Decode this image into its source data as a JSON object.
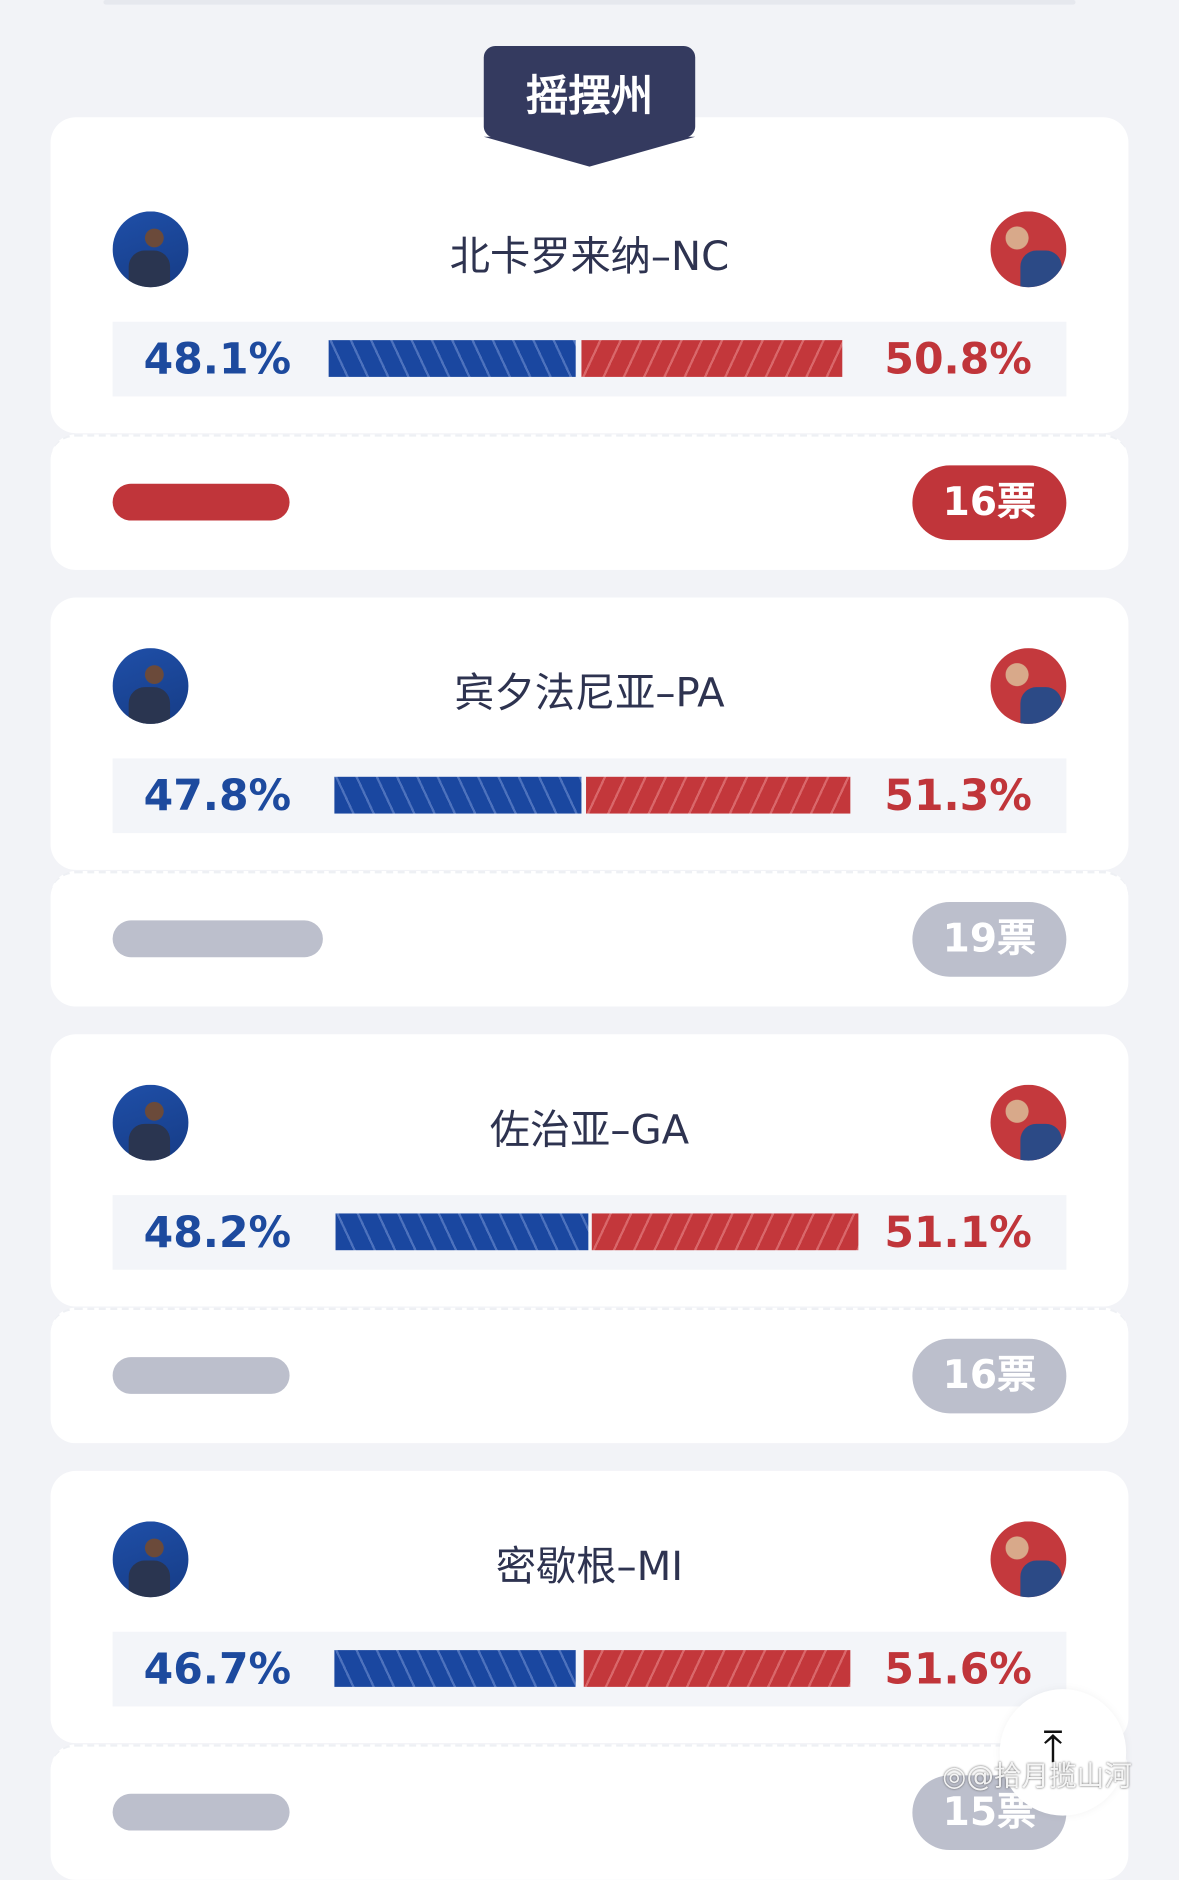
{
  "section_label": "摇摆州",
  "colors": {
    "democrat": "#1a47a0",
    "republican": "#c0353a",
    "undecided": "#bcbfcc",
    "label_bg": "#343a5f"
  },
  "states": [
    {
      "name": "北卡罗来纳–NC",
      "dem_pct": "48.1%",
      "rep_pct": "50.8%",
      "dem": 48.1,
      "rep": 50.8,
      "votes": "16票",
      "winner": "republican"
    },
    {
      "name": "宾夕法尼亚–PA",
      "dem_pct": "47.8%",
      "rep_pct": "51.3%",
      "dem": 47.8,
      "rep": 51.3,
      "votes": "19票",
      "winner": "none"
    },
    {
      "name": "佐治亚–GA",
      "dem_pct": "48.2%",
      "rep_pct": "51.1%",
      "dem": 48.2,
      "rep": 51.1,
      "votes": "16票",
      "winner": "none"
    },
    {
      "name": "密歇根–MI",
      "dem_pct": "46.7%",
      "rep_pct": "51.6%",
      "dem": 46.7,
      "rep": 51.6,
      "votes": "15票",
      "winner": "none"
    }
  ],
  "back_to_top_icon": "arrow-up-to-line-icon",
  "watermark": "@拾月揽山河"
}
